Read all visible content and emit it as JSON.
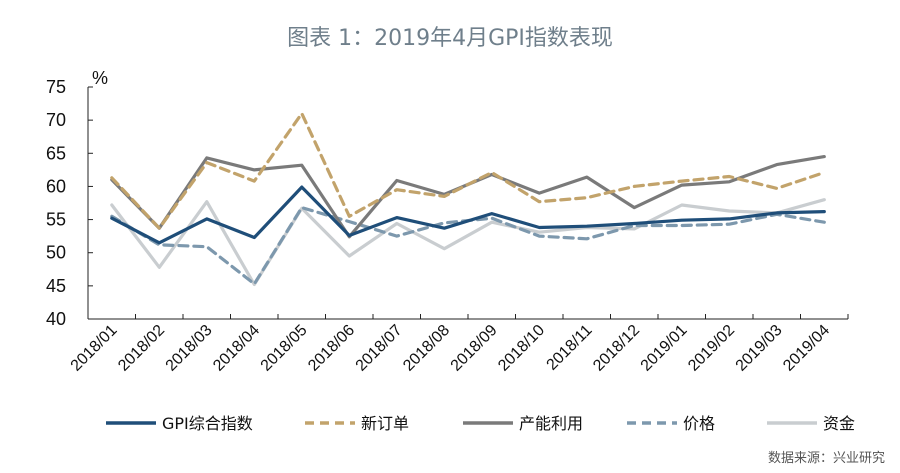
{
  "header": {
    "title": "图表 1：2019年4月GPI指数表现"
  },
  "source": "数据来源：兴业研究",
  "chart_data": {
    "type": "line",
    "ylabel_unit": "%",
    "ylim": [
      40,
      75
    ],
    "yticks": [
      40,
      45,
      50,
      55,
      60,
      65,
      70,
      75
    ],
    "categories": [
      "2018/01",
      "2018/02",
      "2018/03",
      "2018/04",
      "2018/05",
      "2018/06",
      "2018/07",
      "2018/08",
      "2018/09",
      "2018/10",
      "2018/11",
      "2018/12",
      "2019/01",
      "2019/02",
      "2019/03",
      "2019/04"
    ],
    "legend_position": "bottom",
    "series": [
      {
        "name": "GPI综合指数",
        "color": "#1f4e79",
        "dash": false,
        "values": [
          55.2,
          51.5,
          55.1,
          52.3,
          59.9,
          52.6,
          55.3,
          53.7,
          55.9,
          53.8,
          54.0,
          54.4,
          54.9,
          55.1,
          56.0,
          56.2
        ]
      },
      {
        "name": "新订单",
        "color": "#c2a36b",
        "dash": true,
        "values": [
          61.3,
          53.7,
          63.6,
          60.8,
          71.0,
          55.5,
          59.5,
          58.5,
          62.1,
          57.7,
          58.3,
          60.0,
          60.8,
          61.5,
          59.7,
          62.1
        ]
      },
      {
        "name": "产能利用",
        "color": "#7a7a7a",
        "dash": false,
        "values": [
          61.0,
          53.7,
          64.3,
          62.5,
          63.2,
          52.4,
          60.9,
          58.8,
          61.8,
          59.0,
          61.4,
          56.8,
          60.2,
          60.7,
          63.3,
          64.5
        ]
      },
      {
        "name": "价格",
        "color": "#7d98ad",
        "dash": true,
        "values": [
          55.5,
          51.2,
          50.9,
          45.3,
          56.8,
          54.7,
          52.5,
          54.5,
          55.2,
          52.5,
          52.1,
          54.1,
          54.1,
          54.3,
          55.8,
          54.6
        ]
      },
      {
        "name": "资金",
        "color": "#c9cdd0",
        "dash": false,
        "values": [
          57.2,
          47.8,
          57.7,
          45.2,
          56.7,
          49.5,
          54.4,
          50.6,
          54.6,
          53.1,
          53.8,
          53.6,
          57.2,
          56.3,
          56.0,
          58.0
        ]
      }
    ]
  }
}
